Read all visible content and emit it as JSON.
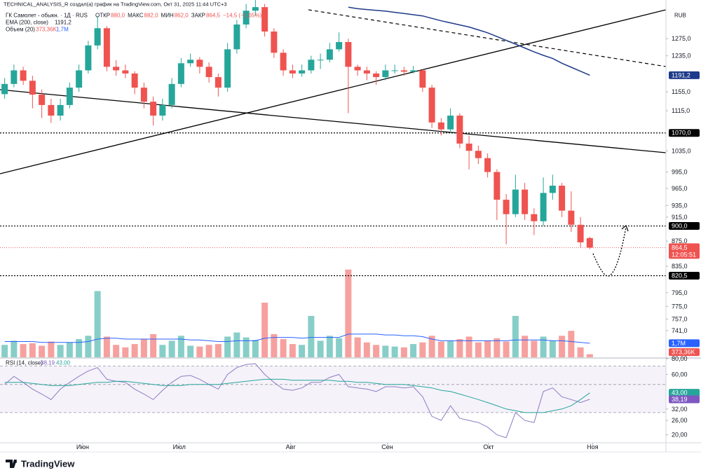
{
  "attribution": "TECHNICAL_ANALYSIS_R создал(а) график на TradingView.com, Окт 31, 2025 11:44 UTC+3",
  "chart_data": {
    "type": "candlestick",
    "title": "ГК Самолет - обыкн. · 1Д · RUS",
    "legend": {
      "ohlc": [
        {
          "label": "ОТКР",
          "value": "880,0"
        },
        {
          "label": "МАКС",
          "value": "882,0"
        },
        {
          "label": "МИН",
          "value": "862,0"
        },
        {
          "label": "ЗАКР",
          "value": "864,5"
        }
      ],
      "change": "−14,5 (−1,65%)"
    },
    "currency": "RUB",
    "log_scale": true,
    "grid": false,
    "up_color": "#26a69a",
    "down_color": "#ef5350",
    "xlim": [
      -0.5,
      71.2
    ],
    "xticks": [
      {
        "value": 8.4,
        "label": "Июн"
      },
      {
        "value": 18.8,
        "label": "Июл"
      },
      {
        "value": 30.8,
        "label": "Авг"
      },
      {
        "value": 41.2,
        "label": "Сен"
      },
      {
        "value": 52.1,
        "label": "Окт"
      },
      {
        "value": 63.3,
        "label": "Ноя"
      }
    ],
    "ylim": [
      705,
      1370
    ],
    "yticks": [
      {
        "value": 1275,
        "label": "1275,0"
      },
      {
        "value": 1235,
        "label": "1235,0"
      },
      {
        "value": 1155,
        "label": "1155,0"
      },
      {
        "value": 1115,
        "label": "1115,0"
      },
      {
        "value": 1035,
        "label": "1035,0"
      },
      {
        "value": 995,
        "label": "995,0"
      },
      {
        "value": 965,
        "label": "965,0"
      },
      {
        "value": 935,
        "label": "935,0"
      },
      {
        "value": 915,
        "label": "915,0"
      },
      {
        "value": 875,
        "label": "875,0"
      },
      {
        "value": 835,
        "label": "835,0"
      },
      {
        "value": 795,
        "label": "795,0"
      },
      {
        "value": 775,
        "label": "775,0"
      },
      {
        "value": 757,
        "label": "757,0"
      },
      {
        "value": 741,
        "label": "741,0"
      }
    ],
    "open": [
      1150,
      1172,
      1202,
      1179,
      1149,
      1127,
      1105,
      1127,
      1164,
      1202,
      1259,
      1300,
      1210,
      1202,
      1195,
      1164,
      1134,
      1105,
      1127,
      1172,
      1218,
      1226,
      1210,
      1187,
      1164,
      1250,
      1309,
      1343,
      1352,
      1292,
      1242,
      1202,
      1195,
      1202,
      1226,
      1226,
      1250,
      1267,
      1210,
      1202,
      1195,
      1187,
      1202,
      1202,
      1199,
      1202,
      1164,
      1091,
      1077,
      1105,
      1049,
      1035,
      1021,
      995,
      945,
      920,
      963,
      920,
      908,
      957,
      970,
      926,
      902,
      880
    ],
    "high": [
      1185,
      1215,
      1210,
      1190,
      1160,
      1140,
      1140,
      1175,
      1215,
      1270,
      1330,
      1305,
      1225,
      1215,
      1200,
      1175,
      1145,
      1140,
      1185,
      1230,
      1240,
      1232,
      1220,
      1195,
      1265,
      1320,
      1360,
      1375,
      1360,
      1300,
      1250,
      1215,
      1215,
      1235,
      1240,
      1265,
      1290,
      1275,
      1215,
      1210,
      1200,
      1215,
      1215,
      1210,
      1212,
      1205,
      1170,
      1100,
      1120,
      1110,
      1065,
      1045,
      1030,
      1000,
      955,
      990,
      975,
      930,
      985,
      990,
      975,
      960,
      915,
      882
    ],
    "low": [
      1140,
      1165,
      1170,
      1120,
      1100,
      1090,
      1095,
      1120,
      1155,
      1195,
      1250,
      1200,
      1190,
      1185,
      1150,
      1120,
      1085,
      1095,
      1120,
      1165,
      1210,
      1195,
      1175,
      1145,
      1155,
      1240,
      1300,
      1330,
      1280,
      1230,
      1190,
      1185,
      1188,
      1195,
      1205,
      1220,
      1245,
      1110,
      1190,
      1180,
      1170,
      1180,
      1195,
      1190,
      1195,
      1155,
      1080,
      1065,
      1070,
      1040,
      1000,
      1010,
      985,
      910,
      870,
      915,
      910,
      885,
      900,
      945,
      915,
      890,
      865,
      862
    ],
    "close": [
      1172,
      1202,
      1179,
      1149,
      1127,
      1105,
      1127,
      1164,
      1202,
      1259,
      1300,
      1210,
      1202,
      1195,
      1164,
      1134,
      1105,
      1127,
      1172,
      1218,
      1226,
      1210,
      1187,
      1164,
      1250,
      1309,
      1343,
      1352,
      1292,
      1242,
      1202,
      1195,
      1202,
      1226,
      1226,
      1250,
      1267,
      1210,
      1202,
      1195,
      1187,
      1202,
      1202,
      1199,
      1202,
      1164,
      1091,
      1077,
      1105,
      1049,
      1035,
      1021,
      995,
      945,
      920,
      963,
      920,
      908,
      957,
      970,
      926,
      902,
      873,
      864.5
    ],
    "ema": {
      "name": "EMA (200, close)",
      "color": "#1e3a8a",
      "last_label": "1191,2",
      "values": [
        null,
        null,
        null,
        null,
        null,
        null,
        null,
        null,
        null,
        null,
        null,
        null,
        null,
        null,
        null,
        null,
        null,
        null,
        null,
        null,
        null,
        null,
        null,
        null,
        null,
        null,
        null,
        null,
        null,
        null,
        null,
        null,
        null,
        null,
        null,
        null,
        null,
        1352,
        1348,
        1346,
        1344,
        1342,
        1339,
        1336,
        1333,
        1330,
        1324,
        1318,
        1313,
        1308,
        1303,
        1296,
        1289,
        1280,
        1271,
        1262,
        1253,
        1244,
        1236,
        1229,
        1218,
        1209,
        1200,
        1191.2
      ]
    },
    "levels": [
      {
        "value": 1070,
        "label": "1070,0"
      },
      {
        "value": 900,
        "label": "900,0"
      },
      {
        "value": 820.5,
        "label": "820,5"
      }
    ],
    "last_price": {
      "value": 864.5,
      "label": "864,5",
      "countdown": "12:05:51"
    },
    "volume": {
      "name": "Объем (20)",
      "vlim": [
        0,
        11000000
      ],
      "ma_color": "#2962ff",
      "last_label": "373,36K",
      "ma_last_label": "1,7M",
      "values": [
        1500000,
        2000000,
        1600000,
        1700000,
        1400000,
        1900000,
        1500000,
        1800000,
        2200000,
        2600000,
        8000000,
        2500000,
        1500000,
        1200000,
        1600000,
        2200000,
        2800000,
        1500000,
        2000000,
        2600000,
        1400000,
        1300000,
        1500000,
        1600000,
        2500000,
        3000000,
        2400000,
        2100000,
        6600000,
        2800000,
        2200000,
        1600000,
        1500000,
        5000000,
        2000000,
        2600000,
        2300000,
        10600000,
        2400000,
        1800000,
        1500000,
        1400000,
        1300000,
        1200000,
        1600000,
        1800000,
        2600000,
        1900000,
        2000000,
        2200000,
        2500000,
        1800000,
        2000000,
        2300000,
        1900000,
        5000000,
        2600000,
        2000000,
        2500000,
        2000000,
        2600000,
        3200000,
        1200000,
        373360
      ],
      "ma_values": [
        1900000,
        1900000,
        1900000,
        1900000,
        1800000,
        1800000,
        1800000,
        1800000,
        1800000,
        1900000,
        2200000,
        2300000,
        2300000,
        2200000,
        2200000,
        2200000,
        2200000,
        2200000,
        2200000,
        2200000,
        2100000,
        2100000,
        2000000,
        1900000,
        1900000,
        2000000,
        2000000,
        2000000,
        2300000,
        2400000,
        2400000,
        2400000,
        2300000,
        2400000,
        2400000,
        2400000,
        2400000,
        2800000,
        2800000,
        2800000,
        2800000,
        2700000,
        2700000,
        2600000,
        2600000,
        2500000,
        2200000,
        2000000,
        2000000,
        2000000,
        2000000,
        2000000,
        2000000,
        2000000,
        2000000,
        2100000,
        2100000,
        2100000,
        2100000,
        2000000,
        2000000,
        1900000,
        1800000,
        1700000
      ]
    },
    "rsi": {
      "name": "RSI (14, close)",
      "log_scale": true,
      "ylim": [
        17.3,
        80
      ],
      "color": "#8e7cc3",
      "ma_color": "#26a69a",
      "bands": [
        70,
        50,
        30
      ],
      "last_label": "38,19",
      "ma_last_label": "43,00",
      "yticks": [
        {
          "value": 80,
          "label": "80,00"
        },
        {
          "value": 60,
          "label": "60,00"
        },
        {
          "value": 32,
          "label": "32,00"
        },
        {
          "value": 26,
          "label": "26,00"
        },
        {
          "value": 20,
          "label": "20,00"
        }
      ],
      "values": [
        50,
        58,
        52,
        46,
        42,
        38,
        46,
        52,
        58,
        64,
        68,
        55,
        53,
        52,
        46,
        42,
        38,
        45,
        52,
        58,
        59,
        55,
        50,
        46,
        60,
        68,
        72,
        73,
        60,
        52,
        46,
        45,
        47,
        52,
        52,
        57,
        60,
        48,
        47,
        46,
        44,
        48,
        48,
        47,
        48,
        40,
        28,
        26,
        34,
        27,
        26,
        25,
        23,
        20,
        19,
        30,
        26,
        25,
        44,
        47,
        40,
        38,
        36,
        38.19
      ],
      "ma_values": [
        52,
        52,
        52,
        51,
        50,
        49,
        49,
        49,
        50,
        51,
        52,
        52,
        53,
        53,
        52,
        51,
        50,
        49,
        49,
        49,
        50,
        50,
        50,
        50,
        51,
        52,
        53,
        54,
        55,
        55,
        55,
        54,
        54,
        54,
        54,
        54,
        53,
        53,
        52,
        52,
        51,
        50,
        50,
        50,
        49,
        48,
        47,
        45,
        44,
        42,
        40,
        38,
        36,
        34,
        32,
        31,
        30,
        30,
        30,
        31,
        32,
        34,
        38,
        43
      ]
    }
  },
  "footer": {
    "brand": "TradingView"
  }
}
